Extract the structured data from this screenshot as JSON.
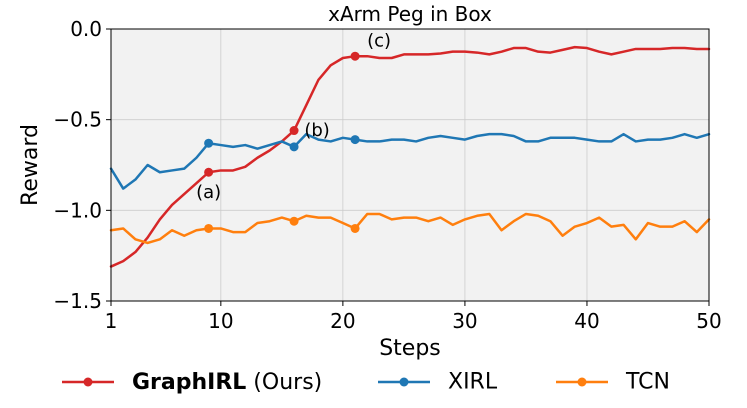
{
  "chart_data": {
    "type": "line",
    "title": "xArm Peg in Box",
    "xlabel": "Steps",
    "ylabel": "Reward",
    "xlim": [
      1,
      50
    ],
    "ylim": [
      -1.5,
      0.0
    ],
    "xticks": [
      1,
      10,
      20,
      30,
      40,
      50
    ],
    "yticks": [
      0.0,
      -0.5,
      -1.0,
      -1.5
    ],
    "xtick_labels": [
      "1",
      "10",
      "20",
      "30",
      "40",
      "50"
    ],
    "ytick_labels": [
      "0.0",
      "−0.5",
      "−1.0",
      "−1.5"
    ],
    "grid": true,
    "legend_position": "bottom",
    "x": [
      1,
      2,
      3,
      4,
      5,
      6,
      7,
      8,
      9,
      10,
      11,
      12,
      13,
      14,
      15,
      16,
      17,
      18,
      19,
      20,
      21,
      22,
      23,
      24,
      25,
      26,
      27,
      28,
      29,
      30,
      31,
      32,
      33,
      34,
      35,
      36,
      37,
      38,
      39,
      40,
      41,
      42,
      43,
      44,
      45,
      46,
      47,
      48,
      49,
      50
    ],
    "series": [
      {
        "name": "GraphIRL",
        "legend_bold": "GraphIRL",
        "legend_rest": " (Ours)",
        "color": "#d62728",
        "values": [
          -1.31,
          -1.28,
          -1.23,
          -1.15,
          -1.05,
          -0.97,
          -0.91,
          -0.85,
          -0.79,
          -0.78,
          -0.78,
          -0.76,
          -0.71,
          -0.67,
          -0.62,
          -0.56,
          -0.42,
          -0.28,
          -0.2,
          -0.16,
          -0.15,
          -0.15,
          -0.16,
          -0.16,
          -0.14,
          -0.14,
          -0.14,
          -0.135,
          -0.125,
          -0.125,
          -0.13,
          -0.14,
          -0.125,
          -0.105,
          -0.105,
          -0.125,
          -0.13,
          -0.115,
          -0.1,
          -0.105,
          -0.125,
          -0.14,
          -0.125,
          -0.11,
          -0.11,
          -0.11,
          -0.105,
          -0.105,
          -0.11,
          -0.11
        ],
        "markers": [
          9,
          16,
          21
        ]
      },
      {
        "name": "XIRL",
        "color": "#1f77b4",
        "values": [
          -0.77,
          -0.88,
          -0.83,
          -0.75,
          -0.79,
          -0.78,
          -0.77,
          -0.71,
          -0.63,
          -0.64,
          -0.65,
          -0.64,
          -0.66,
          -0.64,
          -0.62,
          -0.65,
          -0.58,
          -0.61,
          -0.62,
          -0.6,
          -0.61,
          -0.62,
          -0.62,
          -0.61,
          -0.61,
          -0.62,
          -0.6,
          -0.59,
          -0.6,
          -0.61,
          -0.59,
          -0.58,
          -0.58,
          -0.59,
          -0.62,
          -0.62,
          -0.6,
          -0.6,
          -0.6,
          -0.61,
          -0.62,
          -0.62,
          -0.58,
          -0.62,
          -0.61,
          -0.61,
          -0.6,
          -0.58,
          -0.6,
          -0.58
        ],
        "markers": [
          9,
          16,
          21
        ]
      },
      {
        "name": "TCN",
        "color": "#ff7f0e",
        "values": [
          -1.11,
          -1.1,
          -1.16,
          -1.18,
          -1.16,
          -1.11,
          -1.14,
          -1.11,
          -1.1,
          -1.1,
          -1.12,
          -1.12,
          -1.07,
          -1.06,
          -1.04,
          -1.06,
          -1.03,
          -1.04,
          -1.04,
          -1.07,
          -1.1,
          -1.02,
          -1.02,
          -1.05,
          -1.04,
          -1.04,
          -1.06,
          -1.04,
          -1.08,
          -1.05,
          -1.03,
          -1.02,
          -1.11,
          -1.06,
          -1.02,
          -1.03,
          -1.06,
          -1.14,
          -1.09,
          -1.07,
          -1.04,
          -1.09,
          -1.08,
          -1.16,
          -1.07,
          -1.09,
          -1.09,
          -1.06,
          -1.12,
          -1.05
        ],
        "markers": [
          9,
          16,
          21
        ]
      }
    ],
    "annotations": [
      {
        "text": "(a)",
        "x": 9,
        "y": -0.79
      },
      {
        "text": "(b)",
        "x": 16,
        "y": -0.56
      },
      {
        "text": "(c)",
        "x": 21,
        "y": -0.15
      }
    ]
  }
}
